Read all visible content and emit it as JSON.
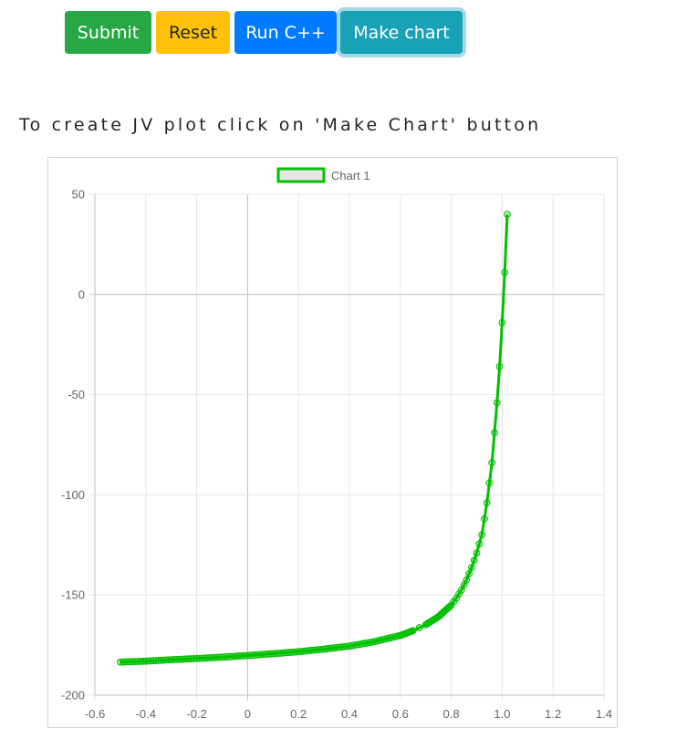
{
  "buttons": {
    "submit": {
      "label": "Submit",
      "color": "#28a745",
      "text_color": "#ffffff"
    },
    "reset": {
      "label": "Reset",
      "color": "#ffc107",
      "text_color": "#212529"
    },
    "run_cpp": {
      "label": "Run C++",
      "color": "#007bff",
      "text_color": "#ffffff"
    },
    "make_chart": {
      "label": "Make chart",
      "color": "#17a2b8",
      "text_color": "#ffffff"
    }
  },
  "instruction": "To create JV plot click on 'Make Chart' button",
  "chart_data": {
    "type": "line",
    "title": "",
    "xlabel": "",
    "ylabel": "",
    "legend": {
      "position": "top",
      "entries": [
        "Chart 1"
      ]
    },
    "grid": true,
    "xlim": [
      -0.6,
      1.4
    ],
    "ylim": [
      -200,
      50
    ],
    "x_ticks": [
      "-0.6",
      "-0.4",
      "-0.2",
      "0",
      "0.2",
      "0.4",
      "0.6",
      "0.8",
      "1.0",
      "1.2",
      "1.4"
    ],
    "y_ticks": [
      "50",
      "0",
      "-50",
      "-100",
      "-150",
      "-200"
    ],
    "series": [
      {
        "name": "Chart 1",
        "color": "#00c000",
        "fill": "#e6e6e6",
        "x": [
          -0.5,
          -0.4,
          -0.3,
          -0.2,
          -0.1,
          0,
          0.1,
          0.2,
          0.3,
          0.4,
          0.5,
          0.6,
          0.65,
          0.7,
          0.75,
          0.8,
          0.82,
          0.84,
          0.86,
          0.88,
          0.9,
          0.92,
          0.94,
          0.96,
          0.98,
          0.99,
          1.0,
          1.01,
          1.02
        ],
        "y": [
          -183.5,
          -183,
          -182.3,
          -181.7,
          -181,
          -180.2,
          -179.3,
          -178.3,
          -177,
          -175.5,
          -173.2,
          -170.2,
          -167.8,
          -164.8,
          -160.8,
          -155,
          -151.5,
          -147.5,
          -142.5,
          -136.3,
          -129,
          -120,
          -104,
          -84,
          -54,
          -36,
          -14,
          11,
          40
        ]
      }
    ]
  }
}
